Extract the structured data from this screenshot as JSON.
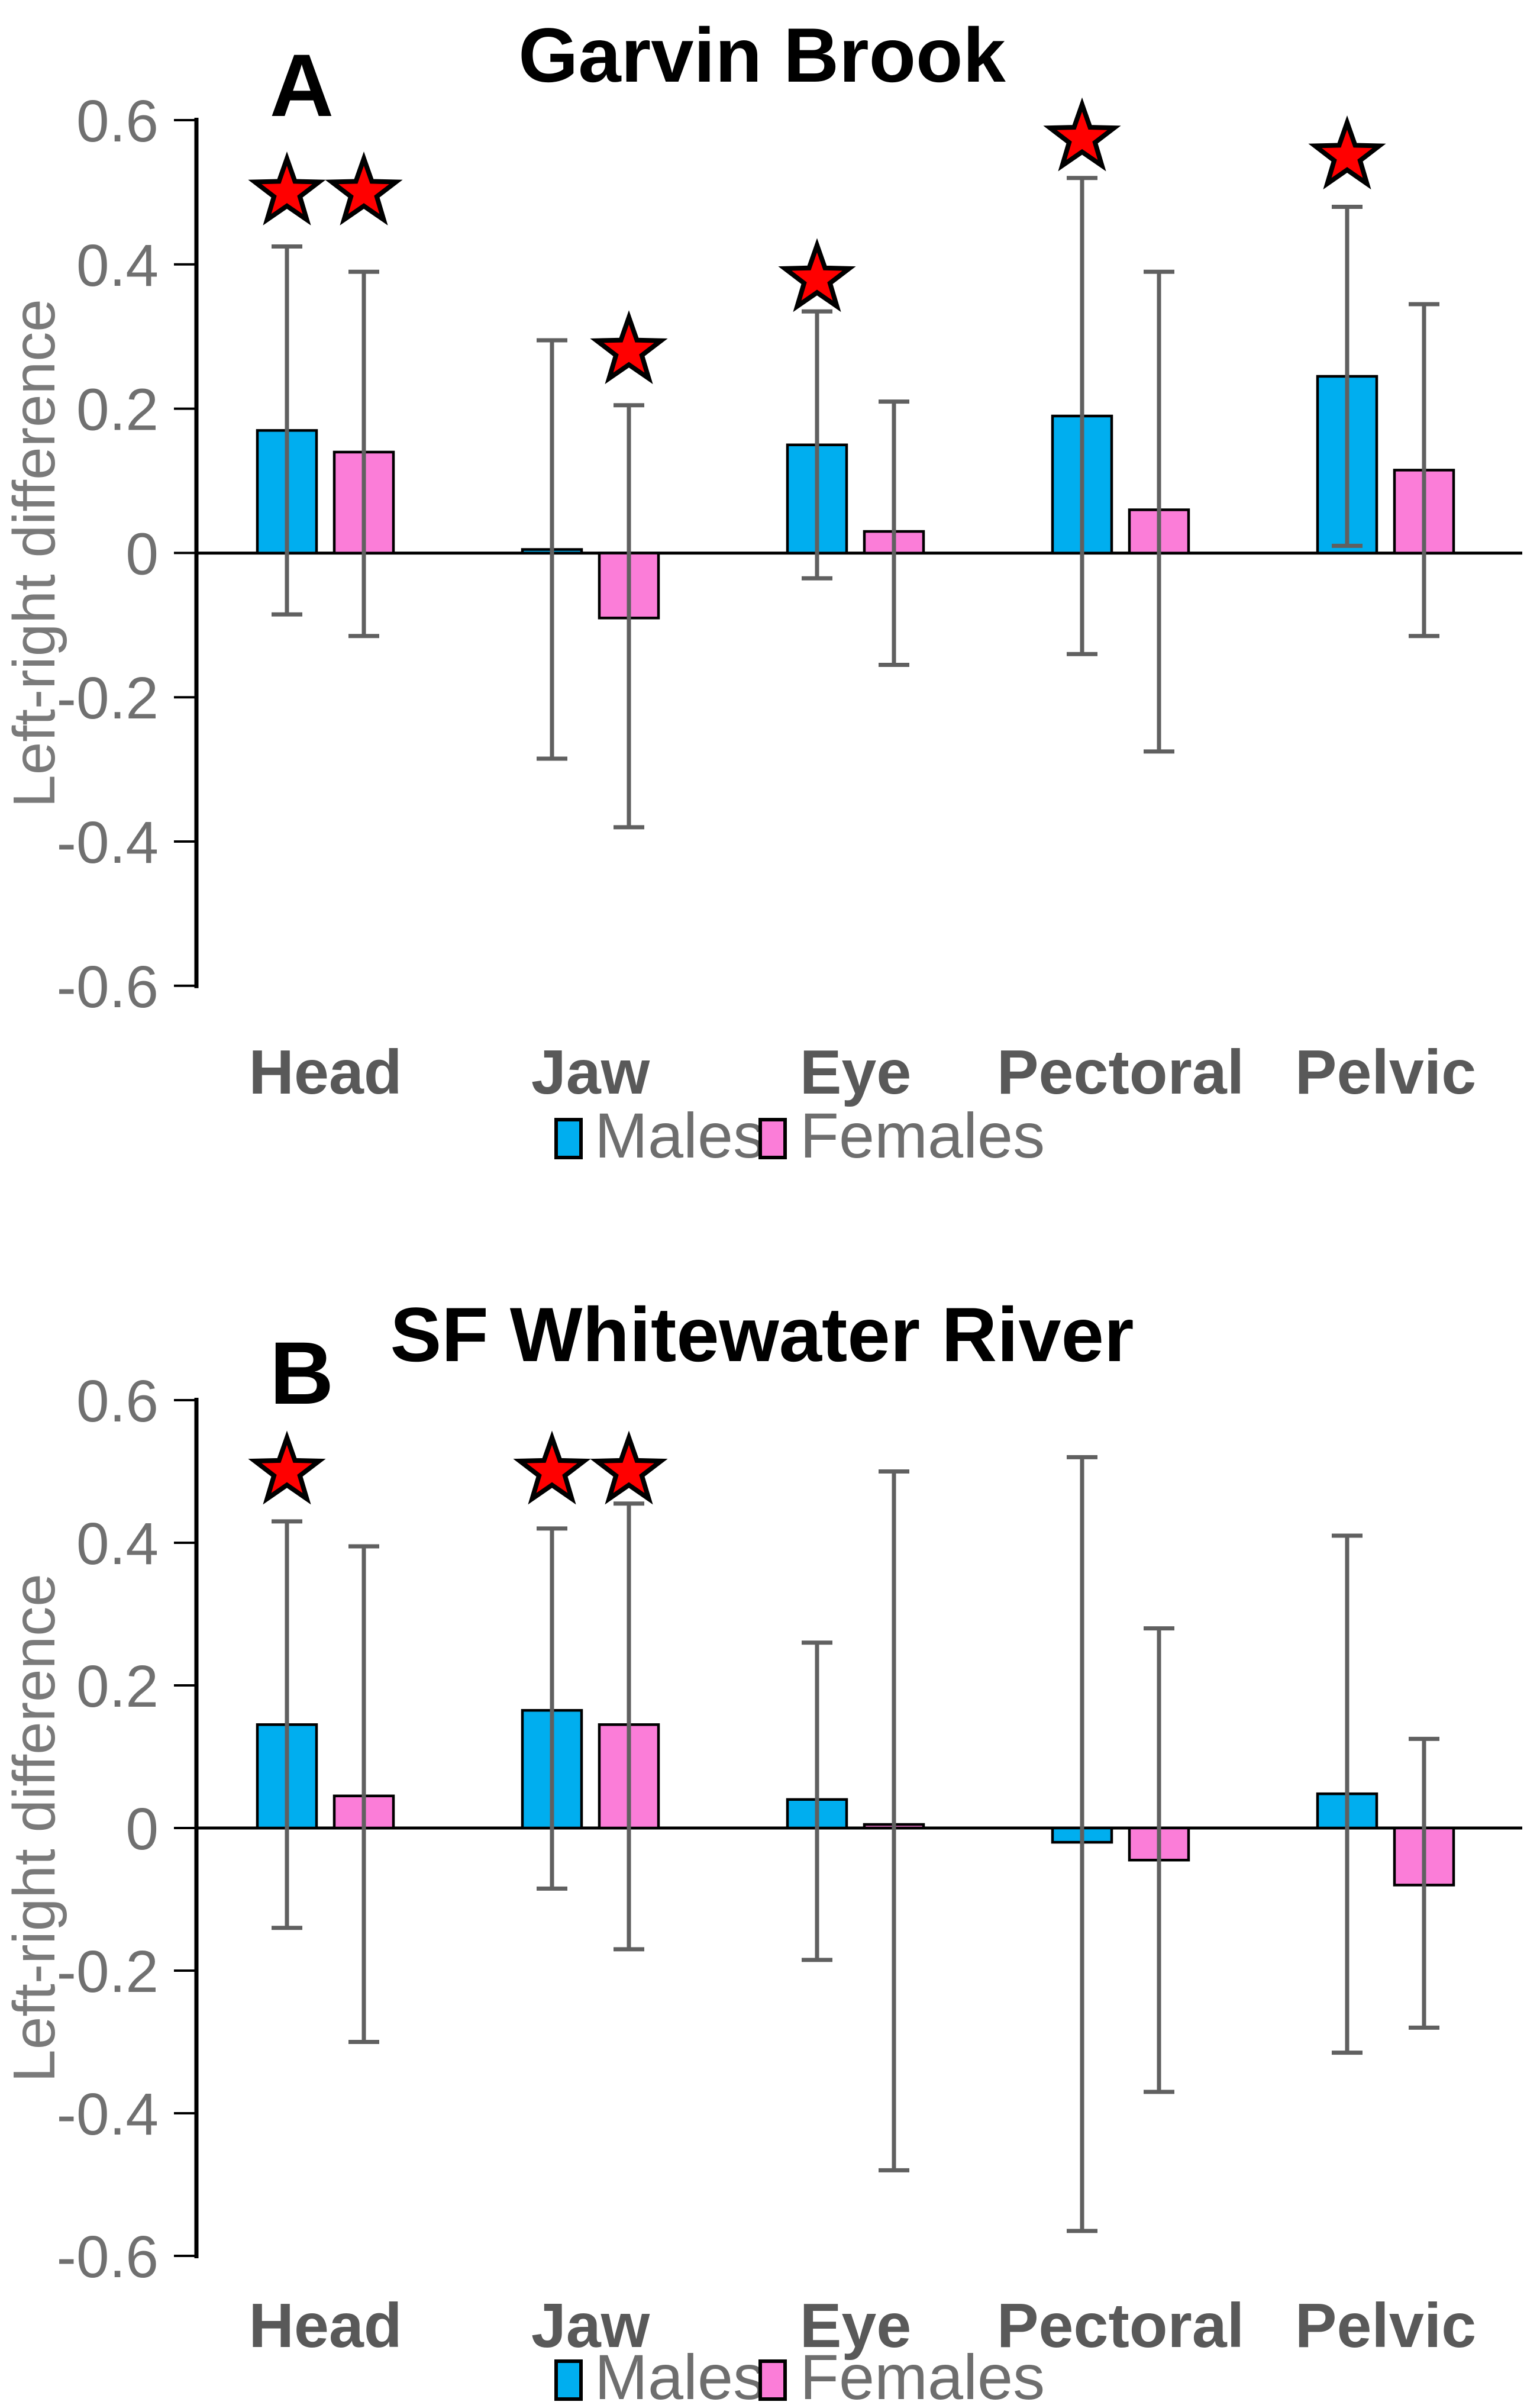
{
  "figure": {
    "y_axis_label": "Left-right difference",
    "colors": {
      "males": "#00AEEF",
      "females": "#FB7DD8",
      "bar_outline": "#000000",
      "error_bar": "#606060",
      "axis_line": "#000000",
      "tick_text": "#707070",
      "category_text": "#595959",
      "legend_text": "#6E6E6E",
      "star_fill": "#FF0000",
      "star_outline": "#000000"
    },
    "star_icon_meaning": "significance-star"
  },
  "chart_data": [
    {
      "type": "bar",
      "panel_label": "A",
      "title": "Garvin Brook",
      "ylabel": "Left-right difference",
      "categories": [
        "Head",
        "Jaw",
        "Eye",
        "Pectoral",
        "Pelvic"
      ],
      "ylim": [
        -0.6,
        0.6
      ],
      "yticks": [
        0.6,
        0.4,
        0.2,
        0,
        -0.2,
        -0.4,
        -0.6
      ],
      "ytick_labels": [
        "0.6",
        "0.4",
        "0.2",
        "0",
        "-0.2",
        "-0.4",
        "-0.6"
      ],
      "grid": false,
      "legend_position": "bottom",
      "legend": {
        "males": "Males",
        "females": "Females"
      },
      "series": [
        {
          "name": "Males",
          "color_key": "males",
          "values": [
            0.17,
            0.005,
            0.15,
            0.19,
            0.245
          ],
          "error_low": [
            -0.085,
            -0.285,
            -0.035,
            -0.14,
            0.01
          ],
          "error_high": [
            0.425,
            0.295,
            0.335,
            0.52,
            0.48
          ],
          "stars": [
            0.5,
            null,
            0.38,
            0.575,
            0.55
          ]
        },
        {
          "name": "Females",
          "color_key": "females",
          "values": [
            0.14,
            -0.09,
            0.03,
            0.06,
            0.115
          ],
          "error_low": [
            -0.115,
            -0.38,
            -0.155,
            -0.275,
            -0.115
          ],
          "error_high": [
            0.39,
            0.205,
            0.21,
            0.39,
            0.345
          ],
          "stars": [
            0.5,
            0.28,
            null,
            null,
            null
          ]
        }
      ]
    },
    {
      "type": "bar",
      "panel_label": "B",
      "title": "SF Whitewater River",
      "ylabel": "Left-right difference",
      "categories": [
        "Head",
        "Jaw",
        "Eye",
        "Pectoral",
        "Pelvic"
      ],
      "ylim": [
        -0.6,
        0.6
      ],
      "yticks": [
        0.6,
        0.4,
        0.2,
        0,
        -0.2,
        -0.4,
        -0.6
      ],
      "ytick_labels": [
        "0.6",
        "0.4",
        "0.2",
        "0",
        "-0.2",
        "-0.4",
        "-0.6"
      ],
      "grid": false,
      "legend_position": "bottom",
      "legend": {
        "males": "Males",
        "females": "Females"
      },
      "series": [
        {
          "name": "Males",
          "color_key": "males",
          "values": [
            0.145,
            0.165,
            0.04,
            -0.02,
            0.048
          ],
          "error_low": [
            -0.14,
            -0.085,
            -0.185,
            -0.565,
            -0.315
          ],
          "error_high": [
            0.43,
            0.42,
            0.26,
            0.52,
            0.41
          ],
          "stars": [
            0.5,
            0.5,
            null,
            null,
            null
          ]
        },
        {
          "name": "Females",
          "color_key": "females",
          "values": [
            0.045,
            0.145,
            0.005,
            -0.045,
            -0.08
          ],
          "error_low": [
            -0.3,
            -0.17,
            -0.48,
            -0.37,
            -0.28
          ],
          "error_high": [
            0.395,
            0.455,
            0.5,
            0.28,
            0.125
          ],
          "stars": [
            null,
            0.5,
            null,
            null,
            null
          ]
        }
      ]
    }
  ]
}
